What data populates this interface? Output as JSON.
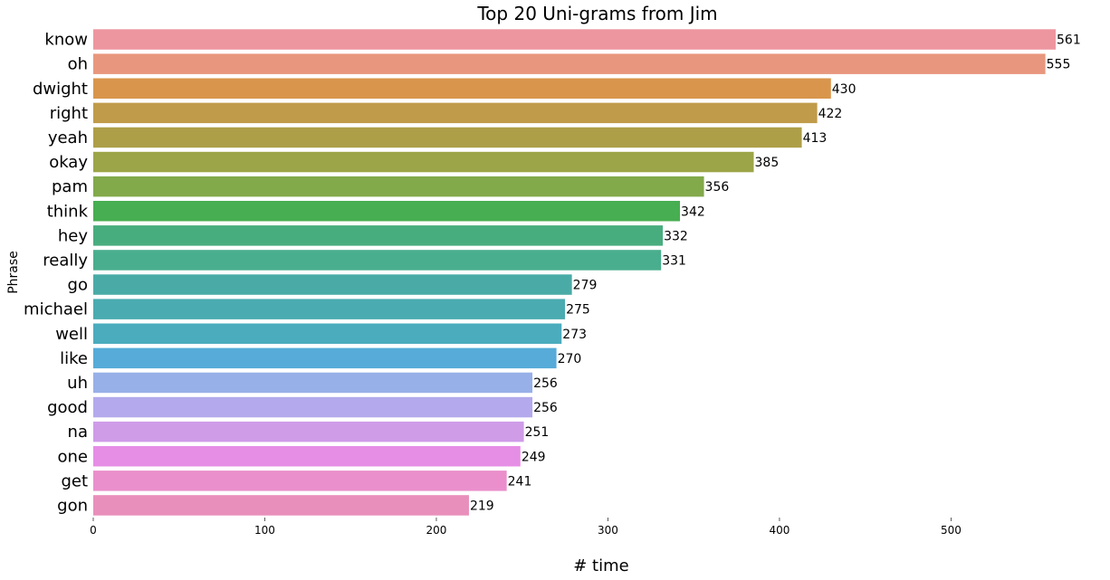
{
  "chart_data": {
    "type": "bar",
    "orientation": "horizontal",
    "title": "Top 20 Uni-grams from Jim",
    "xlabel": "# time",
    "ylabel": "Phrase",
    "xlim": [
      0,
      561
    ],
    "xticks": [
      0,
      100,
      200,
      300,
      400,
      500
    ],
    "grid": false,
    "categories": [
      "know",
      "oh",
      "dwight",
      "right",
      "yeah",
      "okay",
      "pam",
      "think",
      "hey",
      "really",
      "go",
      "michael",
      "well",
      "like",
      "uh",
      "good",
      "na",
      "one",
      "get",
      "gon"
    ],
    "values": [
      561,
      555,
      430,
      422,
      413,
      385,
      356,
      342,
      332,
      331,
      279,
      275,
      273,
      270,
      256,
      256,
      251,
      249,
      241,
      219
    ],
    "colors": [
      "#ee96a0",
      "#e8977e",
      "#d9954c",
      "#c09b4a",
      "#ad9f48",
      "#9ca547",
      "#82a94a",
      "#47ae51",
      "#48ad7e",
      "#49ae8e",
      "#4aaba6",
      "#4aabb0",
      "#4aacbd",
      "#56abd8",
      "#98b0e8",
      "#b3a9ec",
      "#cf9ce8",
      "#e68ee6",
      "#ea8fcb",
      "#e98fbb"
    ]
  }
}
